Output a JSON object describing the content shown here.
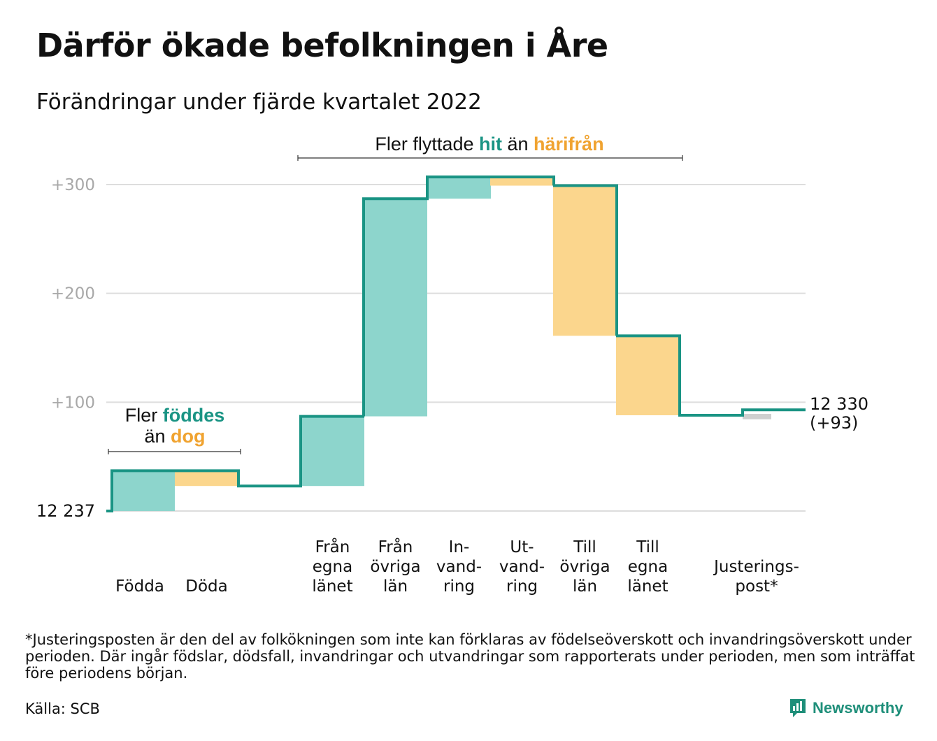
{
  "title": "Därför ökade befolkningen i Åre",
  "subtitle": "Förändringar under fjärde kvartalet 2022",
  "colors": {
    "increase": "#8dd5cc",
    "decrease": "#fbd68d",
    "adjustment": "#cfcfcf",
    "line": "#1a9484",
    "accent_teal": "#1a9484",
    "accent_orange": "#f0a330",
    "grid": "#dddddd",
    "tick": "#a8a8a8"
  },
  "chart_data": {
    "type": "waterfall",
    "start_value": 0,
    "start_label": "12 237",
    "end_value": 93,
    "end_label_line1": "12 330",
    "end_label_line2": "(+93)",
    "ylim": [
      0,
      300
    ],
    "yticks": [
      {
        "value": 100,
        "label": "+100"
      },
      {
        "value": 200,
        "label": "+200"
      },
      {
        "value": 300,
        "label": "+300"
      }
    ],
    "steps": [
      {
        "label": [
          "Födda"
        ],
        "change": 37,
        "kind": "increase"
      },
      {
        "label": [
          "Döda"
        ],
        "change": -14,
        "kind": "decrease"
      },
      {
        "label": [
          "Från",
          "egna",
          "länet"
        ],
        "change": 64,
        "kind": "increase"
      },
      {
        "label": [
          "Från",
          "övriga",
          "län"
        ],
        "change": 200,
        "kind": "increase"
      },
      {
        "label": [
          "In-",
          "vand-",
          "ring"
        ],
        "change": 20,
        "kind": "increase"
      },
      {
        "label": [
          "Ut-",
          "vand-",
          "ring"
        ],
        "change": -8,
        "kind": "decrease"
      },
      {
        "label": [
          "Till",
          "övriga",
          "län"
        ],
        "change": -138,
        "kind": "decrease"
      },
      {
        "label": [
          "Till",
          "egna",
          "länet"
        ],
        "change": -73,
        "kind": "decrease"
      },
      {
        "label": [
          "Justerings-",
          "post*"
        ],
        "change": 5,
        "kind": "adjustment"
      }
    ],
    "annotations": [
      {
        "parts": [
          {
            "text": "Fler ",
            "style": "plain"
          },
          {
            "text": "föddes",
            "style": "teal"
          }
        ],
        "parts2": [
          {
            "text": "än ",
            "style": "plain"
          },
          {
            "text": "dog",
            "style": "orange"
          }
        ]
      },
      {
        "parts": [
          {
            "text": "Fler flyttade ",
            "style": "plain"
          },
          {
            "text": "hit",
            "style": "teal"
          },
          {
            "text": " än ",
            "style": "plain"
          },
          {
            "text": "härifrån",
            "style": "orange"
          }
        ]
      }
    ]
  },
  "footnote": "*Justeringsposten är den del av folkökningen som inte kan förklaras av födelseöverskott och invandringsöverskott under perioden. Där ingår födslar, dödsfall, invandringar och utvandringar som rapporterats under perioden, men som inträffat före periodens början.",
  "source": "Källa: SCB",
  "brand": {
    "name": "Newsworthy",
    "icon": "newsworthy-logo-icon"
  }
}
